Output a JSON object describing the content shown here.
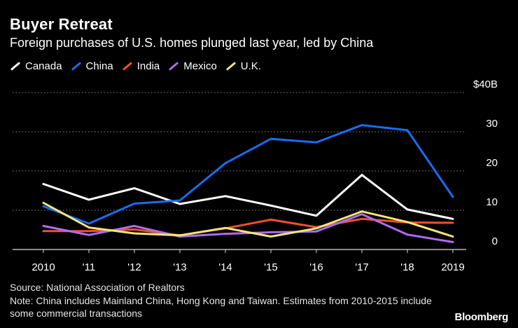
{
  "header": {
    "title": "Buyer Retreat",
    "subtitle": "Foreign purchases of U.S. homes plunged last year, led by China"
  },
  "legend": [
    {
      "name": "Canada",
      "color": "#ffffff"
    },
    {
      "name": "China",
      "color": "#1a6cf0"
    },
    {
      "name": "India",
      "color": "#f0502d"
    },
    {
      "name": "Mexico",
      "color": "#b06cf0"
    },
    {
      "name": "U.K.",
      "color": "#f0e678"
    }
  ],
  "chart_data": {
    "type": "line",
    "title": "Buyer Retreat",
    "subtitle": "Foreign purchases of U.S. homes plunged last year, led by China",
    "x": [
      2010,
      2011,
      2012,
      2013,
      2014,
      2015,
      2016,
      2017,
      2018,
      2019
    ],
    "x_tick_labels": [
      "2010",
      "'11",
      "'12",
      "'13",
      "'14",
      "'15",
      "'16",
      "'17",
      "'18",
      "2019"
    ],
    "y_ticks": [
      0,
      10,
      20,
      30,
      40
    ],
    "y_tick_labels": [
      "0",
      "10",
      "20",
      "30",
      "$40B"
    ],
    "ylim": [
      0,
      40
    ],
    "grid": true,
    "series": [
      {
        "name": "Canada",
        "color": "#ffffff",
        "values": [
          16.7,
          12.7,
          15.6,
          11.6,
          13.6,
          11.2,
          8.6,
          19.0,
          10.2,
          7.8
        ]
      },
      {
        "name": "China",
        "color": "#1a6cf0",
        "values": [
          11.0,
          6.6,
          11.7,
          12.5,
          22.0,
          28.2,
          27.3,
          31.7,
          30.4,
          13.4
        ]
      },
      {
        "name": "India",
        "color": "#f0502d",
        "values": [
          4.7,
          4.7,
          5.1,
          3.6,
          5.4,
          7.6,
          5.7,
          7.8,
          6.9,
          6.8
        ]
      },
      {
        "name": "Mexico",
        "color": "#b06cf0",
        "values": [
          6.0,
          3.7,
          6.0,
          3.3,
          4.0,
          4.4,
          4.6,
          9.0,
          3.8,
          1.9
        ]
      },
      {
        "name": "U.K.",
        "color": "#f0e678",
        "values": [
          11.9,
          5.6,
          4.1,
          3.6,
          5.5,
          3.3,
          5.4,
          9.7,
          7.0,
          3.3
        ]
      }
    ]
  },
  "footer": {
    "source": "Source: National Association of Realtors",
    "note": "Note: China includes Mainland China, Hong Kong and Taiwan. Estimates from 2010-2015 include some commercial transactions",
    "brand": "Bloomberg"
  }
}
